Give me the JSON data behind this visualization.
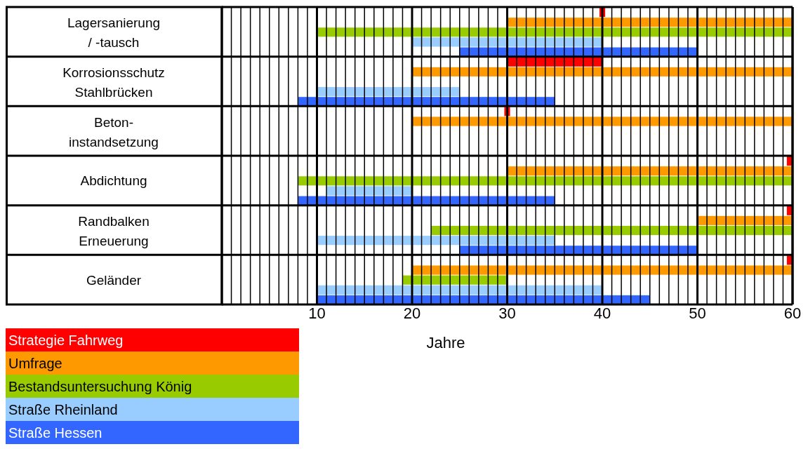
{
  "chart_data": {
    "type": "bar",
    "orientation": "horizontal",
    "xlabel": "Jahre",
    "categories": [
      "Lagersanierung\n/ -tausch",
      "Korrosionsschutz\nStahlbrücken",
      "Beton-\ninstandsetzung",
      "Abdichtung",
      "Randbalken\nErneuerung",
      "Geländer"
    ],
    "series": [
      {
        "name": "Strategie Fahrweg",
        "color": "#ff0000",
        "base": [
          39.7,
          30,
          29.7,
          59.4,
          59.4,
          59.4
        ],
        "values": [
          0.6,
          10,
          0.6,
          0.6,
          0.6,
          0.6
        ]
      },
      {
        "name": "Umfrage",
        "color": "#ff9900",
        "base": [
          30,
          20,
          20,
          30,
          50,
          20
        ],
        "values": [
          30,
          40,
          40,
          30,
          10,
          40
        ]
      },
      {
        "name": "Bestandsuntersuchung König",
        "color": "#99cc00",
        "base": [
          10,
          null,
          null,
          8,
          22,
          19
        ],
        "values": [
          50,
          null,
          null,
          52,
          38,
          11
        ]
      },
      {
        "name": "Straße Rheinland",
        "color": "#99ccff",
        "base": [
          20,
          10,
          null,
          11,
          10,
          10
        ],
        "values": [
          20,
          15,
          null,
          9,
          25,
          30
        ]
      },
      {
        "name": "Straße Hessen",
        "color": "#3366ff",
        "base": [
          25,
          8,
          null,
          8,
          25,
          10
        ],
        "values": [
          25,
          27,
          null,
          27,
          25,
          35
        ]
      }
    ],
    "xlim": [
      0,
      60
    ],
    "xticks": [
      {
        "value": 0,
        "label": null
      },
      {
        "value": 1,
        "label": null
      },
      {
        "value": 2,
        "label": null
      },
      {
        "value": 3,
        "label": null
      },
      {
        "value": 4,
        "label": null
      },
      {
        "value": 5,
        "label": null
      },
      {
        "value": 6,
        "label": null
      },
      {
        "value": 7,
        "label": null
      },
      {
        "value": 8,
        "label": null
      },
      {
        "value": 9,
        "label": null
      },
      10,
      {
        "value": 11,
        "label": null
      },
      {
        "value": 12,
        "label": null
      },
      {
        "value": 13,
        "label": null
      },
      {
        "value": 14,
        "label": null
      },
      {
        "value": 15,
        "label": null
      },
      {
        "value": 16,
        "label": null
      },
      {
        "value": 17,
        "label": null
      },
      {
        "value": 18,
        "label": null
      },
      {
        "value": 19,
        "label": null
      },
      20,
      {
        "value": 21,
        "label": null
      },
      {
        "value": 22,
        "label": null
      },
      {
        "value": 23,
        "label": null
      },
      {
        "value": 24,
        "label": null
      },
      {
        "value": 25,
        "label": null
      },
      {
        "value": 26,
        "label": null
      },
      {
        "value": 27,
        "label": null
      },
      {
        "value": 28,
        "label": null
      },
      {
        "value": 29,
        "label": null
      },
      30,
      {
        "value": 31,
        "label": null
      },
      {
        "value": 32,
        "label": null
      },
      {
        "value": 33,
        "label": null
      },
      {
        "value": 34,
        "label": null
      },
      {
        "value": 35,
        "label": null
      },
      {
        "value": 36,
        "label": null
      },
      {
        "value": 37,
        "label": null
      },
      {
        "value": 38,
        "label": null
      },
      {
        "value": 39,
        "label": null
      },
      40,
      {
        "value": 41,
        "label": null
      },
      {
        "value": 42,
        "label": null
      },
      {
        "value": 43,
        "label": null
      },
      {
        "value": 44,
        "label": null
      },
      {
        "value": 45,
        "label": null
      },
      {
        "value": 46,
        "label": null
      },
      {
        "value": 47,
        "label": null
      },
      {
        "value": 48,
        "label": null
      },
      {
        "value": 49,
        "label": null
      },
      50,
      {
        "value": 51,
        "label": null
      },
      {
        "value": 52,
        "label": null
      },
      {
        "value": 53,
        "label": null
      },
      {
        "value": 54,
        "label": null
      },
      {
        "value": 55,
        "label": null
      },
      {
        "value": 56,
        "label": null
      },
      {
        "value": 57,
        "label": null
      },
      {
        "value": 58,
        "label": null
      },
      {
        "value": 59,
        "label": null
      },
      60
    ],
    "grid": "x",
    "legend": "bottom left"
  }
}
